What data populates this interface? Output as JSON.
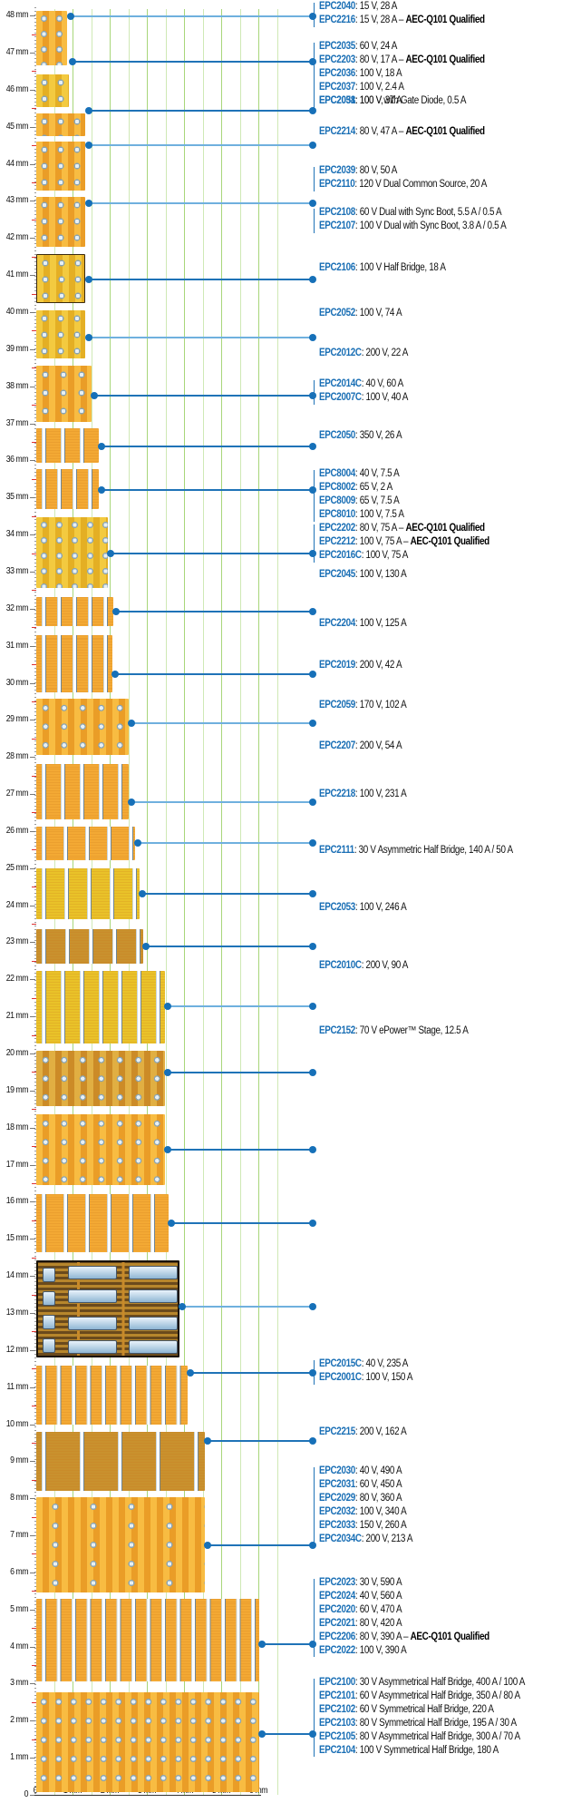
{
  "figure": {
    "type": "chip-size-comparison-diagram",
    "y_axis": {
      "unit": "mm",
      "ticks": [
        "48 mm",
        "47 mm",
        "46 mm",
        "45 mm",
        "44 mm",
        "43 mm",
        "42 mm",
        "41 mm",
        "40 mm",
        "39 mm",
        "38 mm",
        "37 mm",
        "36 mm",
        "35 mm",
        "34 mm",
        "33 mm",
        "32 mm",
        "31 mm",
        "30 mm",
        "29 mm",
        "28 mm",
        "27 mm",
        "26 mm",
        "25 mm",
        "24 mm",
        "23 mm",
        "22 mm",
        "21 mm",
        "20 mm",
        "19 mm",
        "18 mm",
        "17 mm",
        "16 mm",
        "15 mm",
        "14 mm",
        "13 mm",
        "12 mm",
        "11 mm",
        "10 mm",
        "9 mm",
        "8 mm",
        "7 mm",
        "6 mm",
        "5 mm",
        "4 mm",
        "3 mm",
        "2 mm",
        "1 mm",
        "0"
      ]
    },
    "x_axis": {
      "unit": "mm",
      "ticks": [
        "0",
        "1 mm",
        "2 mm",
        "3 mm",
        "4 mm",
        "5 mm",
        "6 mm"
      ]
    },
    "colors": {
      "part_number": "#1a6fb5",
      "connector_dark": "#1f73b7",
      "connector_light": "#6fb0de",
      "grid": "#a8d67a",
      "chip_orange": "#f2a92e",
      "chip_gold": "#e9c229"
    }
  },
  "groups": [
    {
      "id": "g1",
      "parts": [
        {
          "part": "EPC2040",
          "spec": ": 15 V, 28 A",
          "qual": ""
        },
        {
          "part": "EPC2216",
          "spec": ": 15 V, 28 A – ",
          "qual": "AEC-Q101 Qualified"
        }
      ]
    },
    {
      "id": "g2",
      "parts": [
        {
          "part": "EPC2035",
          "spec": ": 60 V, 24 A",
          "qual": ""
        },
        {
          "part": "EPC2203",
          "spec": ": 80 V, 17 A – ",
          "qual": "AEC-Q101 Qualified"
        },
        {
          "part": "EPC2036",
          "spec": ": 100 V, 18 A",
          "qual": ""
        },
        {
          "part": "EPC2037",
          "spec": ": 100 V, 2.4 A",
          "qual": ""
        },
        {
          "part": "EPC2038",
          "spec": ": 100 V with Gate Diode, 0.5 A",
          "qual": ""
        }
      ]
    },
    {
      "id": "g3",
      "parts": [
        {
          "part": "EPC2051",
          "spec": ": 100 V, 37 A",
          "qual": ""
        }
      ]
    },
    {
      "id": "g4",
      "parts": [
        {
          "part": "EPC2214",
          "spec": ": 80 V, 47 A – ",
          "qual": "AEC-Q101 Qualified"
        }
      ]
    },
    {
      "id": "g5",
      "parts": [
        {
          "part": "EPC2039",
          "spec": ": 80 V, 50 A",
          "qual": ""
        },
        {
          "part": "EPC2110",
          "spec": ": 120 V Dual Common Source, 20 A",
          "qual": ""
        }
      ]
    },
    {
      "id": "g6",
      "parts": [
        {
          "part": "EPC2108",
          "spec": ": 60 V Dual with Sync Boot, 5.5 A / 0.5 A",
          "qual": ""
        },
        {
          "part": "EPC2107",
          "spec": ": 100 V Dual with Sync Boot, 3.8 A / 0.5 A",
          "qual": ""
        }
      ]
    },
    {
      "id": "g7",
      "parts": [
        {
          "part": "EPC2106",
          "spec": ": 100 V Half Bridge, 18 A",
          "qual": ""
        }
      ]
    },
    {
      "id": "g8",
      "parts": [
        {
          "part": "EPC2052",
          "spec": ": 100 V, 74 A",
          "qual": ""
        }
      ]
    },
    {
      "id": "g9",
      "parts": [
        {
          "part": "EPC2012C",
          "spec": ": 200 V, 22 A",
          "qual": ""
        }
      ]
    },
    {
      "id": "g10",
      "parts": [
        {
          "part": "EPC2014C",
          "spec": ": 40 V, 60 A",
          "qual": ""
        },
        {
          "part": "EPC2007C",
          "spec": ": 100 V, 40 A",
          "qual": ""
        }
      ]
    },
    {
      "id": "g11",
      "parts": [
        {
          "part": "EPC2050",
          "spec": ": 350 V, 26 A",
          "qual": ""
        }
      ]
    },
    {
      "id": "g12",
      "parts": [
        {
          "part": "EPC8004",
          "spec": ": 40 V, 7.5 A",
          "qual": ""
        },
        {
          "part": "EPC8002",
          "spec": ": 65 V, 2 A",
          "qual": ""
        },
        {
          "part": "EPC8009",
          "spec": ": 65 V, 7.5 A",
          "qual": ""
        },
        {
          "part": "EPC8010",
          "spec": ": 100 V, 7.5 A",
          "qual": ""
        }
      ]
    },
    {
      "id": "g13",
      "parts": [
        {
          "part": "EPC2202",
          "spec": ": 80 V, 75 A – ",
          "qual": "AEC-Q101 Qualified"
        },
        {
          "part": "EPC2212",
          "spec": ": 100 V, 75 A – ",
          "qual": "AEC-Q101 Qualified"
        },
        {
          "part": "EPC2016C",
          "spec": ": 100 V, 75 A",
          "qual": ""
        }
      ]
    },
    {
      "id": "g14",
      "parts": [
        {
          "part": "EPC2045",
          "spec": ": 100 V, 130 A",
          "qual": ""
        }
      ]
    },
    {
      "id": "g15",
      "parts": [
        {
          "part": "EPC2204",
          "spec": ": 100 V, 125 A",
          "qual": ""
        }
      ]
    },
    {
      "id": "g16",
      "parts": [
        {
          "part": "EPC2019",
          "spec": ": 200 V, 42 A",
          "qual": ""
        }
      ]
    },
    {
      "id": "g17",
      "parts": [
        {
          "part": "EPC2059",
          "spec": ": 170 V, 102 A",
          "qual": ""
        }
      ]
    },
    {
      "id": "g18",
      "parts": [
        {
          "part": "EPC2207",
          "spec": ": 200 V, 54 A",
          "qual": ""
        }
      ]
    },
    {
      "id": "g19",
      "parts": [
        {
          "part": "EPC2218",
          "spec": ": 100 V, 231 A",
          "qual": ""
        }
      ]
    },
    {
      "id": "g20",
      "parts": [
        {
          "part": "EPC2111",
          "spec": ": 30 V Asymmetric Half Bridge, 140 A / 50 A",
          "qual": ""
        }
      ]
    },
    {
      "id": "g21",
      "parts": [
        {
          "part": "EPC2053",
          "spec": ": 100 V, 246 A",
          "qual": ""
        }
      ]
    },
    {
      "id": "g22",
      "parts": [
        {
          "part": "EPC2010C",
          "spec": ": 200 V, 90 A",
          "qual": ""
        }
      ]
    },
    {
      "id": "g23",
      "parts": [
        {
          "part": "EPC2152",
          "spec": ": 70 V ePower™ Stage, 12.5 A",
          "qual": ""
        }
      ]
    },
    {
      "id": "g24",
      "parts": [
        {
          "part": "EPC2015C",
          "spec": ": 40 V, 235 A",
          "qual": ""
        },
        {
          "part": "EPC2001C",
          "spec": ": 100 V, 150 A",
          "qual": ""
        }
      ]
    },
    {
      "id": "g25",
      "parts": [
        {
          "part": "EPC2215",
          "spec": ": 200 V, 162 A",
          "qual": ""
        }
      ]
    },
    {
      "id": "g26",
      "parts": [
        {
          "part": "EPC2030",
          "spec": ": 40 V, 490 A",
          "qual": ""
        },
        {
          "part": "EPC2031",
          "spec": ": 60 V, 450 A",
          "qual": ""
        },
        {
          "part": "EPC2029",
          "spec": ": 80 V, 360 A",
          "qual": ""
        },
        {
          "part": "EPC2032",
          "spec": ": 100 V, 340 A",
          "qual": ""
        },
        {
          "part": "EPC2033",
          "spec": ": 150 V, 260 A",
          "qual": ""
        },
        {
          "part": "EPC2034C",
          "spec": ": 200 V, 213 A",
          "qual": ""
        }
      ]
    },
    {
      "id": "g27",
      "parts": [
        {
          "part": "EPC2023",
          "spec": ": 30 V, 590 A",
          "qual": ""
        },
        {
          "part": "EPC2024",
          "spec": ": 40 V, 560 A",
          "qual": ""
        },
        {
          "part": "EPC2020",
          "spec": ": 60 V, 470 A",
          "qual": ""
        },
        {
          "part": "EPC2021",
          "spec": ": 80 V, 420 A",
          "qual": ""
        },
        {
          "part": "EPC2206",
          "spec": ": 80 V, 390 A – ",
          "qual": "AEC-Q101 Qualified"
        },
        {
          "part": "EPC2022",
          "spec": ": 100 V, 390 A",
          "qual": ""
        }
      ]
    },
    {
      "id": "g28",
      "parts": [
        {
          "part": "EPC2100",
          "spec": ": 30 V Asymmetrical Half Bridge, 400 A / 100 A",
          "qual": ""
        },
        {
          "part": "EPC2101",
          "spec": ": 60 V Asymmetrical Half Bridge, 350 A / 80 A",
          "qual": ""
        },
        {
          "part": "EPC2102",
          "spec": ": 60 V Symmetrical Half Bridge, 220 A",
          "qual": ""
        },
        {
          "part": "EPC2103",
          "spec": ": 80 V Symmetrical Half Bridge, 195  A / 30 A",
          "qual": ""
        },
        {
          "part": "EPC2105",
          "spec": ": 80 V Asymmetrical Half Bridge, 300 A / 70 A",
          "qual": ""
        },
        {
          "part": "EPC2104",
          "spec": ": 100 V Symmetrical Half Bridge, 180 A",
          "qual": ""
        }
      ]
    }
  ]
}
